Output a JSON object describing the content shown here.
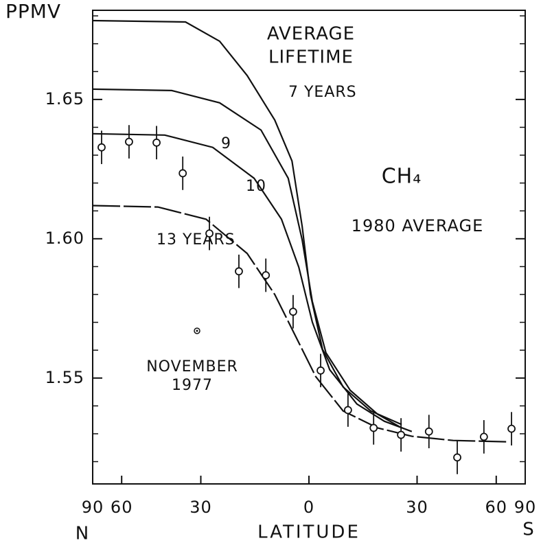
{
  "chart_data": {
    "type": "line",
    "y_label": "PPMV",
    "x_label": "LATITUDE",
    "x_left_label": "N",
    "x_right_label": "S",
    "annotations": [
      "AVERAGE",
      "LIFETIME",
      "CH₄",
      "1980 AVERAGE",
      "NOVEMBER",
      "1977"
    ],
    "xscale": "sine",
    "xlim": [
      90,
      -90
    ],
    "xticks": [
      90,
      60,
      30,
      0,
      {
        "value": -30,
        "label": "30"
      },
      {
        "value": -60,
        "label": "60"
      },
      {
        "value": -90,
        "label": "90"
      }
    ],
    "ylim": [
      1.512,
      1.682
    ],
    "yticks": [
      1.65,
      {
        "value": 1.6,
        "label": "1.60"
      },
      1.55
    ],
    "yminorticks": [
      1.52,
      1.53,
      1.54,
      1.56,
      1.57,
      1.58,
      1.59,
      1.61,
      1.62,
      1.63,
      1.64,
      1.66,
      1.67,
      1.68
    ],
    "color": "#111111",
    "series": [
      {
        "name": "7 YEARS",
        "dash": false,
        "x": [
          90,
          34.8,
          24.4,
          16.6,
          9.1,
          4.5,
          1.8,
          -0.4,
          -3.6,
          -9.1,
          -16.6,
          -25.4
        ],
        "values": [
          1.6783,
          1.6778,
          1.6709,
          1.6586,
          1.6426,
          1.6279,
          1.6045,
          1.58,
          1.5603,
          1.5468,
          1.5382,
          1.5333
        ]
      },
      {
        "name": "9",
        "dash": false,
        "x": [
          90,
          39.4,
          24.4,
          12.8,
          5.5,
          1.8,
          -0.9,
          -4.5,
          -11.0,
          -18.5,
          -25.4
        ],
        "values": [
          1.6537,
          1.6532,
          1.6488,
          1.639,
          1.6217,
          1.5996,
          1.5775,
          1.5591,
          1.5456,
          1.537,
          1.5321
        ]
      },
      {
        "name": "10",
        "dash": false,
        "x": [
          90,
          41.8,
          26.4,
          14.7,
          7.3,
          2.7,
          -0.9,
          -5.5,
          -12.8,
          -20.4,
          -28.4
        ],
        "values": [
          1.6377,
          1.6372,
          1.6328,
          1.6217,
          1.607,
          1.5898,
          1.5701,
          1.553,
          1.5407,
          1.5345,
          1.5308
        ]
      },
      {
        "name": "13 YEARS",
        "dash": true,
        "x": [
          90,
          44.3,
          28.4,
          16.6,
          9.1,
          3.6,
          -1.8,
          -9.1,
          -18.5,
          -28.4,
          -41.8,
          -67.0
        ],
        "values": [
          1.6119,
          1.6114,
          1.607,
          1.5947,
          1.58,
          1.5652,
          1.5505,
          1.5382,
          1.5321,
          1.5291,
          1.5276,
          1.5271
        ]
      }
    ],
    "points": {
      "x": [
        73.5,
        56.3,
        44.8,
        35.7,
        27.4,
        18.9,
        11.5,
        4.2,
        -3.1,
        -10.4,
        -17.4,
        -25.2,
        -33.7,
        -43.3,
        -54.0,
        -69.5
      ],
      "values": [
        1.6328,
        1.6348,
        1.6345,
        1.6235,
        1.6019,
        1.5883,
        1.5869,
        1.5738,
        1.5527,
        1.5385,
        1.5321,
        1.5296,
        1.5308,
        1.5215,
        1.5289,
        1.5318
      ],
      "errors": [
        0.006,
        0.006,
        0.006,
        0.006,
        0.006,
        0.006,
        0.006,
        0.006,
        0.006,
        0.006,
        0.006,
        0.006,
        0.006,
        0.006,
        0.006,
        0.006
      ]
    }
  }
}
